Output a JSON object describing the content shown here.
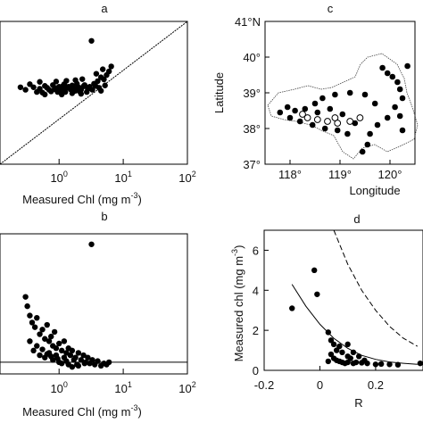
{
  "chart_data": [
    {
      "id": "a",
      "type": "scatter",
      "panel_label": "a",
      "xlabel": "Measured Chl (mg m",
      "xlabel_sup": "-3",
      "xlabel_close": ")",
      "xscale": "log",
      "xticks": [
        {
          "v": 1,
          "base": "10",
          "exp": "0"
        },
        {
          "v": 10,
          "base": "10",
          "exp": "1"
        },
        {
          "v": 100,
          "base": "10",
          "exp": "2"
        }
      ],
      "xlim": [
        0.12,
        100
      ],
      "ylim": [
        0.12,
        100
      ],
      "reference_line": "1:1",
      "points": [
        [
          3.2,
          40
        ],
        [
          0.4,
          4.5
        ],
        [
          0.5,
          4.2
        ],
        [
          0.6,
          4.8
        ],
        [
          0.7,
          4.0
        ],
        [
          0.8,
          5.0
        ],
        [
          0.9,
          4.3
        ],
        [
          1.0,
          4.6
        ],
        [
          1.1,
          3.9
        ],
        [
          1.2,
          5.2
        ],
        [
          1.3,
          4.4
        ],
        [
          1.5,
          4.1
        ],
        [
          1.6,
          4.9
        ],
        [
          1.8,
          3.8
        ],
        [
          2.0,
          4.5
        ],
        [
          2.2,
          4.0
        ],
        [
          2.5,
          5.0
        ],
        [
          2.8,
          4.2
        ],
        [
          3.0,
          4.6
        ],
        [
          3.5,
          5.3
        ],
        [
          4.0,
          6.0
        ],
        [
          4.5,
          7.2
        ],
        [
          5.0,
          6.5
        ],
        [
          5.5,
          8.0
        ],
        [
          6.0,
          9.5
        ],
        [
          6.5,
          12
        ],
        [
          4.8,
          10.5
        ],
        [
          3.8,
          8.5
        ],
        [
          0.3,
          4.0
        ],
        [
          0.35,
          5.2
        ],
        [
          0.45,
          3.6
        ],
        [
          0.55,
          3.5
        ],
        [
          0.65,
          4.4
        ],
        [
          0.75,
          3.7
        ],
        [
          0.85,
          4.1
        ],
        [
          0.95,
          3.6
        ],
        [
          1.05,
          4.2
        ],
        [
          1.15,
          4.8
        ],
        [
          1.25,
          3.6
        ],
        [
          1.4,
          4.6
        ],
        [
          1.7,
          4.3
        ],
        [
          1.9,
          5.3
        ],
        [
          2.1,
          3.7
        ],
        [
          2.4,
          4.7
        ],
        [
          2.7,
          3.6
        ],
        [
          3.3,
          4.0
        ],
        [
          3.7,
          4.8
        ],
        [
          4.2,
          4.4
        ],
        [
          0.5,
          5.8
        ],
        [
          0.9,
          5.9
        ],
        [
          1.3,
          6.1
        ],
        [
          1.8,
          6.3
        ],
        [
          2.3,
          6.6
        ],
        [
          0.25,
          4.5
        ],
        [
          0.6,
          3.2
        ],
        [
          1.1,
          3.2
        ],
        [
          1.6,
          3.4
        ],
        [
          2.2,
          3.3
        ],
        [
          4.5,
          3.8
        ],
        [
          5.2,
          4.9
        ]
      ]
    },
    {
      "id": "b",
      "type": "scatter",
      "panel_label": "b",
      "xlabel": "Measured Chl (mg m",
      "xlabel_sup": "-3",
      "xlabel_close": ")",
      "xscale": "log",
      "xticks": [
        {
          "v": 1,
          "base": "10",
          "exp": "0"
        },
        {
          "v": 10,
          "base": "10",
          "exp": "1"
        },
        {
          "v": 100,
          "base": "10",
          "exp": "2"
        }
      ],
      "xlim": [
        0.12,
        100
      ],
      "ylim": [
        -0.5,
        5.5
      ],
      "reference_line_y": 0,
      "points": [
        [
          3.2,
          5.05
        ],
        [
          0.3,
          2.8
        ],
        [
          0.32,
          2.4
        ],
        [
          0.35,
          2.0
        ],
        [
          0.38,
          1.7
        ],
        [
          0.42,
          1.5
        ],
        [
          0.45,
          1.9
        ],
        [
          0.5,
          1.2
        ],
        [
          0.55,
          1.4
        ],
        [
          0.6,
          1.0
        ],
        [
          0.65,
          1.6
        ],
        [
          0.7,
          0.9
        ],
        [
          0.75,
          1.1
        ],
        [
          0.8,
          0.7
        ],
        [
          0.85,
          1.3
        ],
        [
          0.9,
          0.6
        ],
        [
          1.0,
          0.8
        ],
        [
          1.1,
          0.5
        ],
        [
          1.2,
          0.9
        ],
        [
          1.3,
          0.4
        ],
        [
          1.4,
          0.6
        ],
        [
          1.5,
          0.3
        ],
        [
          1.6,
          0.5
        ],
        [
          1.8,
          0.2
        ],
        [
          2.0,
          0.4
        ],
        [
          2.2,
          0.1
        ],
        [
          2.4,
          0.3
        ],
        [
          2.6,
          0.0
        ],
        [
          2.8,
          0.2
        ],
        [
          3.0,
          -0.05
        ],
        [
          3.3,
          0.1
        ],
        [
          3.6,
          -0.1
        ],
        [
          4.0,
          0.05
        ],
        [
          4.5,
          -0.15
        ],
        [
          5.0,
          -0.05
        ],
        [
          5.5,
          -0.1
        ],
        [
          6.0,
          0.0
        ],
        [
          0.4,
          0.5
        ],
        [
          0.5,
          0.3
        ],
        [
          0.6,
          0.2
        ],
        [
          0.7,
          0.4
        ],
        [
          0.8,
          0.1
        ],
        [
          0.9,
          0.3
        ],
        [
          1.0,
          0.0
        ],
        [
          1.2,
          0.2
        ],
        [
          1.4,
          -0.1
        ],
        [
          1.7,
          0.1
        ],
        [
          2.0,
          -0.15
        ],
        [
          2.5,
          -0.05
        ],
        [
          0.35,
          0.9
        ],
        [
          0.45,
          0.7
        ],
        [
          0.55,
          0.55
        ],
        [
          0.65,
          0.35
        ],
        [
          0.75,
          0.25
        ],
        [
          0.95,
          0.15
        ],
        [
          1.1,
          -0.05
        ],
        [
          1.3,
          0.05
        ],
        [
          1.6,
          -0.2
        ],
        [
          1.9,
          -0.1
        ]
      ]
    },
    {
      "id": "c",
      "type": "scatter",
      "panel_label": "c",
      "xlabel": "Longitude",
      "ylabel": "Latitude",
      "xlim": [
        117.5,
        120.5
      ],
      "ylim": [
        37,
        41
      ],
      "xticks": [
        {
          "v": 118,
          "label": "118°"
        },
        {
          "v": 119,
          "label": "119°"
        },
        {
          "v": 120,
          "label": "120°"
        }
      ],
      "yticks": [
        {
          "v": 37,
          "label": "37°"
        },
        {
          "v": 38,
          "label": "38°"
        },
        {
          "v": 39,
          "label": "39°"
        },
        {
          "v": 40,
          "label": "40°"
        },
        {
          "v": 41,
          "label": "41°N"
        }
      ],
      "filled_points": [
        [
          119.85,
          39.7
        ],
        [
          119.95,
          39.55
        ],
        [
          120.05,
          39.45
        ],
        [
          120.15,
          39.3
        ],
        [
          120.2,
          39.1
        ],
        [
          120.25,
          38.85
        ],
        [
          120.1,
          38.6
        ],
        [
          119.95,
          38.3
        ],
        [
          120.25,
          37.95
        ],
        [
          120.2,
          38.35
        ],
        [
          119.7,
          38.7
        ],
        [
          119.75,
          38.1
        ],
        [
          119.6,
          37.85
        ],
        [
          119.55,
          37.55
        ],
        [
          119.45,
          37.35
        ],
        [
          119.5,
          38.95
        ],
        [
          119.2,
          39.0
        ],
        [
          118.9,
          38.95
        ],
        [
          118.65,
          38.85
        ],
        [
          118.5,
          38.7
        ],
        [
          118.3,
          38.55
        ],
        [
          118.1,
          38.5
        ],
        [
          117.8,
          38.45
        ],
        [
          117.95,
          38.6
        ],
        [
          118.0,
          38.3
        ],
        [
          118.2,
          38.2
        ],
        [
          118.45,
          38.1
        ],
        [
          118.7,
          38.0
        ],
        [
          118.95,
          37.95
        ],
        [
          119.15,
          37.85
        ],
        [
          119.3,
          38.15
        ],
        [
          119.05,
          38.4
        ],
        [
          118.8,
          38.55
        ],
        [
          118.55,
          38.45
        ],
        [
          120.35,
          39.75
        ]
      ],
      "open_points": [
        [
          118.35,
          38.3
        ],
        [
          118.55,
          38.25
        ],
        [
          118.75,
          38.2
        ],
        [
          118.95,
          38.15
        ],
        [
          119.2,
          38.2
        ],
        [
          119.4,
          38.3
        ],
        [
          118.25,
          38.4
        ],
        [
          118.9,
          38.3
        ]
      ]
    },
    {
      "id": "d",
      "type": "scatter",
      "panel_label": "d",
      "xlabel": "R",
      "ylabel": "Measured chl (mg m",
      "ylabel_sup": "-3",
      "ylabel_close": ")",
      "xlim": [
        -0.2,
        0.37
      ],
      "ylim": [
        0,
        7
      ],
      "xticks": [
        {
          "v": -0.2,
          "label": "-0.2"
        },
        {
          "v": 0,
          "label": "0"
        },
        {
          "v": 0.2,
          "label": "0.2"
        }
      ],
      "yticks": [
        {
          "v": 0,
          "label": "0"
        },
        {
          "v": 2,
          "label": "2"
        },
        {
          "v": 4,
          "label": "4"
        },
        {
          "v": 6,
          "label": "6"
        }
      ],
      "points": [
        [
          -0.02,
          5.0
        ],
        [
          -0.1,
          3.1
        ],
        [
          -0.01,
          3.8
        ],
        [
          0.03,
          1.9
        ],
        [
          0.04,
          1.5
        ],
        [
          0.05,
          1.3
        ],
        [
          0.07,
          1.2
        ],
        [
          0.06,
          1.0
        ],
        [
          0.08,
          0.9
        ],
        [
          0.1,
          0.7
        ],
        [
          0.11,
          0.6
        ],
        [
          0.04,
          0.8
        ],
        [
          0.05,
          0.6
        ],
        [
          0.06,
          0.5
        ],
        [
          0.07,
          0.45
        ],
        [
          0.08,
          0.4
        ],
        [
          0.09,
          0.35
        ],
        [
          0.1,
          0.4
        ],
        [
          0.12,
          0.35
        ],
        [
          0.13,
          0.4
        ],
        [
          0.15,
          0.38
        ],
        [
          0.17,
          0.35
        ],
        [
          0.2,
          0.3
        ],
        [
          0.22,
          0.32
        ],
        [
          0.25,
          0.3
        ],
        [
          0.28,
          0.28
        ],
        [
          0.1,
          1.3
        ],
        [
          0.12,
          0.9
        ],
        [
          0.14,
          0.7
        ],
        [
          0.16,
          0.5
        ],
        [
          0.03,
          0.45
        ],
        [
          0.36,
          0.35
        ]
      ],
      "curves": [
        {
          "style": "solid",
          "points": [
            [
              -0.1,
              4.3
            ],
            [
              -0.05,
              3.2
            ],
            [
              0.0,
              2.3
            ],
            [
              0.05,
              1.6
            ],
            [
              0.1,
              1.1
            ],
            [
              0.15,
              0.75
            ],
            [
              0.2,
              0.55
            ],
            [
              0.25,
              0.42
            ],
            [
              0.3,
              0.35
            ],
            [
              0.35,
              0.3
            ]
          ]
        },
        {
          "style": "dashed",
          "points": [
            [
              0.05,
              7.0
            ],
            [
              0.1,
              5.3
            ],
            [
              0.15,
              4.0
            ],
            [
              0.2,
              3.0
            ],
            [
              0.25,
              2.2
            ],
            [
              0.3,
              1.6
            ],
            [
              0.35,
              1.2
            ]
          ]
        }
      ]
    }
  ]
}
